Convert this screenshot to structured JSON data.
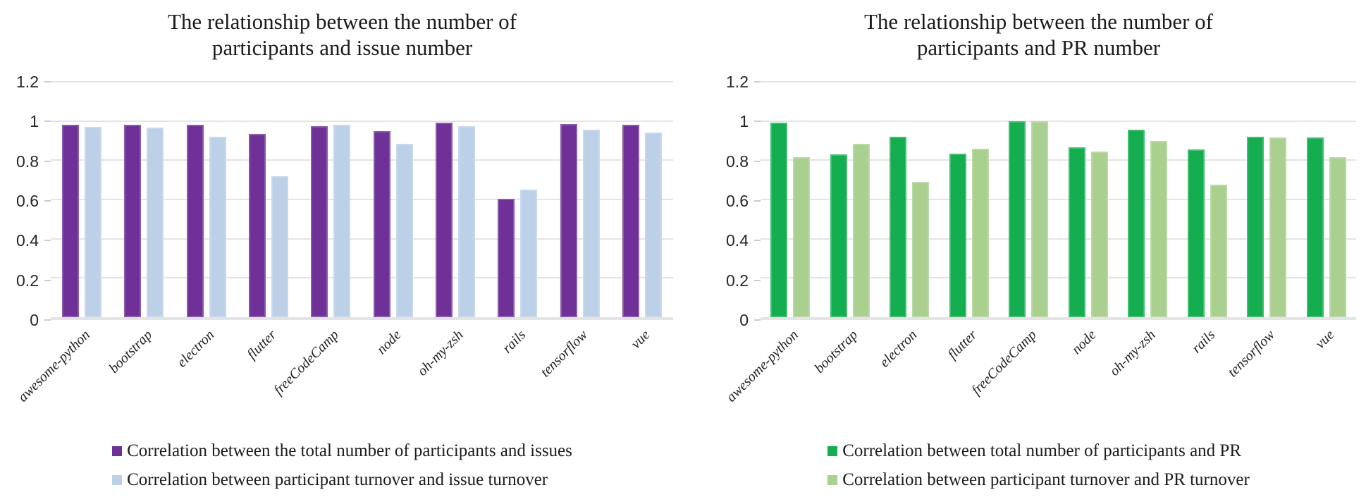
{
  "page": {
    "background": "#ffffff"
  },
  "chart_data": [
    {
      "type": "bar",
      "title": "The relationship between the number of participants and issue number",
      "title_lines": [
        "The relationship between the number of",
        "participants and issue number"
      ],
      "categories": [
        "awesome-python",
        "bootstrap",
        "electron",
        "flutter",
        "freeCodeCamp",
        "node",
        "oh-my-zsh",
        "rails",
        "tensorflow",
        "vue"
      ],
      "series": [
        {
          "name": "Correlation between the total number of participants and issues",
          "color": "#6F3198",
          "values": [
            0.98,
            0.98,
            0.98,
            0.935,
            0.975,
            0.95,
            0.99,
            0.605,
            0.985,
            0.98
          ]
        },
        {
          "name": "Correlation between participant turnover and issue turnover",
          "color": "#BCD0E8",
          "values": [
            0.97,
            0.965,
            0.92,
            0.72,
            0.98,
            0.885,
            0.975,
            0.65,
            0.955,
            0.94
          ]
        }
      ],
      "y_axis": {
        "max": 1.2,
        "ticks": [
          0,
          0.2,
          0.4,
          0.6,
          0.8,
          1,
          1.2
        ],
        "tick_labels": [
          "0",
          "0.2",
          "0.4",
          "0.6",
          "0.8",
          "1",
          "1.2"
        ]
      },
      "grid": true,
      "legend_position": "bottom",
      "x_label_rotation_deg": -45
    },
    {
      "type": "bar",
      "title": "The relationship between the number of participants and PR number",
      "title_lines": [
        "The relationship between the number of",
        "participants and PR number"
      ],
      "categories": [
        "awesome-python",
        "bootstrap",
        "electron",
        "flutter",
        "freeCodeCamp",
        "node",
        "oh-my-zsh",
        "rails",
        "tensorflow",
        "vue"
      ],
      "series": [
        {
          "name": "Correlation between total number of participants and PR",
          "color": "#14AE50",
          "values": [
            0.99,
            0.83,
            0.92,
            0.835,
            1.0,
            0.865,
            0.955,
            0.855,
            0.92,
            0.915
          ]
        },
        {
          "name": "Correlation between participant turnover and PR turnover",
          "color": "#A9D08E",
          "values": [
            0.815,
            0.885,
            0.69,
            0.86,
            1.0,
            0.845,
            0.9,
            0.675,
            0.915,
            0.815
          ]
        }
      ],
      "y_axis": {
        "max": 1.2,
        "ticks": [
          0,
          0.2,
          0.4,
          0.6,
          0.8,
          1,
          1.2
        ],
        "tick_labels": [
          "0",
          "0.2",
          "0.4",
          "0.6",
          "0.8",
          "1",
          "1.2"
        ]
      },
      "grid": true,
      "legend_position": "bottom",
      "x_label_rotation_deg": -45
    }
  ],
  "style_colors": {
    "gridline": "#E4E4E4",
    "axis_baseline": "#E4E4E4",
    "text": "#1C1C1C"
  }
}
